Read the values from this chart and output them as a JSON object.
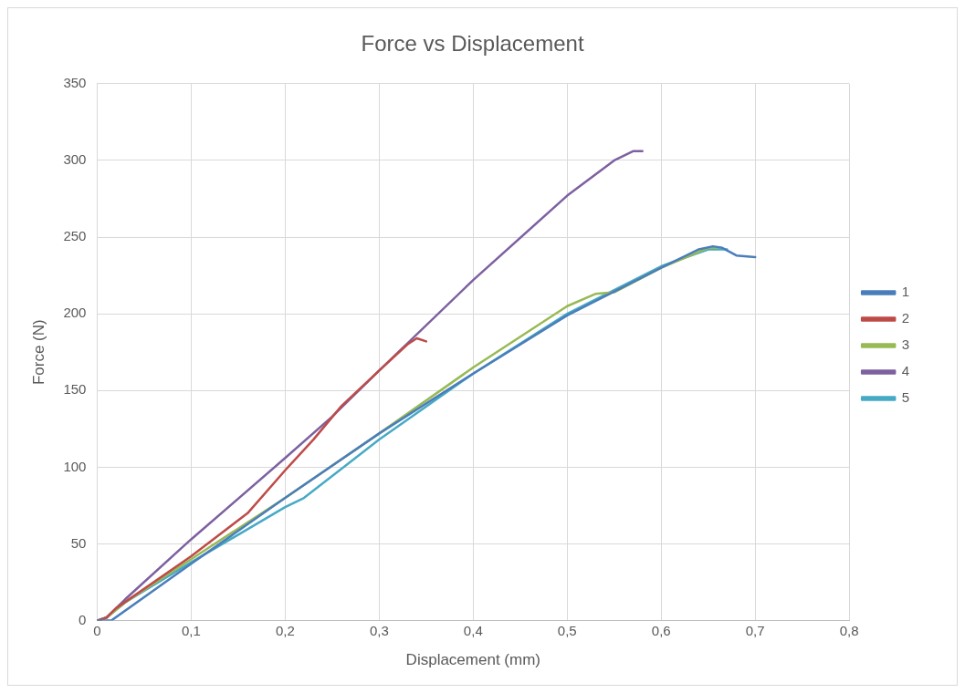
{
  "chart_data": {
    "type": "line",
    "title": "Force vs Displacement",
    "xlabel": "Displacement (mm)",
    "ylabel": "Force (N)",
    "xlim": [
      0,
      0.8
    ],
    "xticks": [
      0,
      {
        "value": 0.1,
        "label": "0,1"
      },
      {
        "value": 0.2,
        "label": "0,2"
      },
      {
        "value": 0.3,
        "label": "0,3"
      },
      {
        "value": 0.4,
        "label": "0,4"
      },
      {
        "value": 0.5,
        "label": "0,5"
      },
      {
        "value": 0.6,
        "label": "0,6"
      },
      {
        "value": 0.7,
        "label": "0,7"
      },
      {
        "value": 0.8,
        "label": "0,8"
      }
    ],
    "ylim": [
      0,
      350
    ],
    "yticks": [
      0,
      50,
      100,
      150,
      200,
      250,
      300,
      350
    ],
    "grid": true,
    "legend": "right",
    "marker": "none",
    "line_style": "solid",
    "series": [
      {
        "name": "1",
        "color": "#4a7ebb",
        "x": [
          0,
          0.015,
          0.1,
          0.2,
          0.3,
          0.4,
          0.5,
          0.6,
          0.64,
          0.655,
          0.665,
          0.68,
          0.7
        ],
        "values": [
          0,
          0,
          37,
          80,
          122,
          161,
          199,
          230,
          242,
          244,
          243,
          238,
          237
        ]
      },
      {
        "name": "2",
        "color": "#be4b48",
        "x": [
          0,
          0.01,
          0.02,
          0.1,
          0.16,
          0.2,
          0.23,
          0.26,
          0.3,
          0.33,
          0.34,
          0.35
        ],
        "values": [
          0,
          2,
          8,
          42,
          70,
          98,
          118,
          140,
          163,
          180,
          184,
          182
        ]
      },
      {
        "name": "3",
        "color": "#98b954",
        "x": [
          0,
          0.01,
          0.03,
          0.1,
          0.2,
          0.3,
          0.4,
          0.5,
          0.53,
          0.55,
          0.6,
          0.65,
          0.66
        ],
        "values": [
          0,
          2,
          12,
          40,
          80,
          122,
          165,
          205,
          213,
          214,
          230,
          243,
          243
        ]
      },
      {
        "name": "4",
        "color": "#7d60a0",
        "x": [
          0,
          0.01,
          0.03,
          0.1,
          0.2,
          0.25,
          0.3,
          0.4,
          0.5,
          0.55,
          0.57,
          0.58
        ],
        "values": [
          0,
          2,
          14,
          53,
          106,
          133,
          163,
          222,
          277,
          300,
          306,
          306
        ]
      },
      {
        "name": "5",
        "color": "#46aac5",
        "x": [
          0,
          0.01,
          0.03,
          0.1,
          0.2,
          0.22,
          0.3,
          0.4,
          0.5,
          0.6,
          0.65,
          0.67
        ],
        "values": [
          0,
          2,
          12,
          38,
          74,
          80,
          118,
          161,
          200,
          231,
          242,
          242
        ]
      }
    ]
  }
}
